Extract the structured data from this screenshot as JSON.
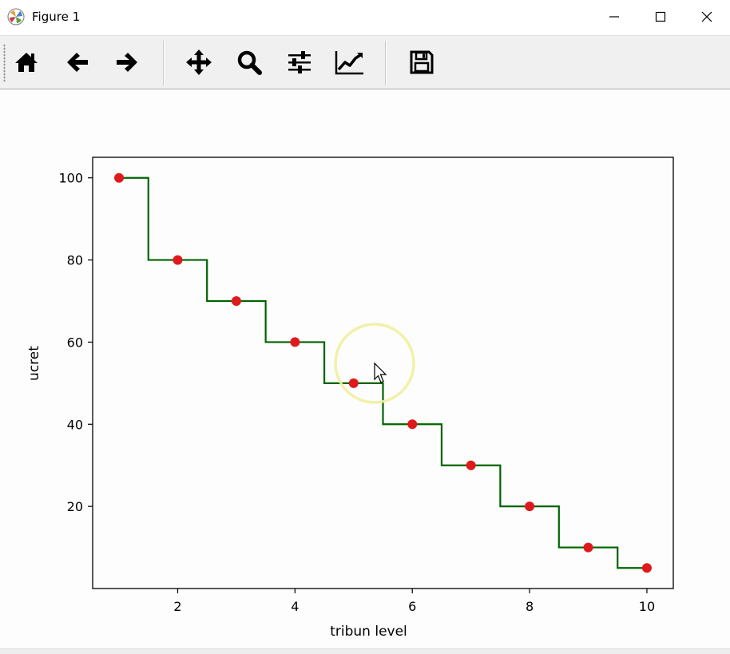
{
  "window": {
    "title": "Figure 1",
    "controls": [
      "minimize",
      "maximize",
      "close"
    ]
  },
  "toolbar": {
    "buttons": [
      {
        "name": "home",
        "icon": "home-icon",
        "tooltip": "Reset original view"
      },
      {
        "name": "back",
        "icon": "arrow-left-icon",
        "tooltip": "Back to previous view"
      },
      {
        "name": "forward",
        "icon": "arrow-right-icon",
        "tooltip": "Forward to next view"
      },
      {
        "name": "pan",
        "icon": "move-arrows-icon",
        "tooltip": "Pan axes"
      },
      {
        "name": "zoom",
        "icon": "magnifier-icon",
        "tooltip": "Zoom to rectangle"
      },
      {
        "name": "subplots",
        "icon": "sliders-icon",
        "tooltip": "Configure subplots"
      },
      {
        "name": "edit-axes",
        "icon": "line-chart-icon",
        "tooltip": "Edit axis, curve and image parameters"
      },
      {
        "name": "save",
        "icon": "floppy-disk-icon",
        "tooltip": "Save the figure"
      }
    ]
  },
  "colors": {
    "step_line": "#006400",
    "points": "#e0191c",
    "cursor_highlight": "#f0f0a0"
  },
  "chart_data": {
    "type": "line",
    "title": "",
    "xlabel": "tribun level",
    "ylabel": "ucret",
    "xlim": [
      0.55,
      10.45
    ],
    "ylim": [
      0,
      105
    ],
    "xticks": [
      2,
      4,
      6,
      8,
      10
    ],
    "yticks": [
      20,
      40,
      60,
      80,
      100
    ],
    "grid": false,
    "series": [
      {
        "style": "step-mid",
        "color": "#006400",
        "x": [
          1,
          2,
          3,
          4,
          5,
          6,
          7,
          8,
          9,
          10
        ],
        "y": [
          100,
          80,
          70,
          60,
          50,
          40,
          30,
          20,
          10,
          5
        ]
      },
      {
        "style": "scatter",
        "color": "#e0191c",
        "x": [
          1,
          2,
          3,
          4,
          5,
          6,
          7,
          8,
          9,
          10
        ],
        "y": [
          100,
          80,
          70,
          60,
          50,
          40,
          30,
          20,
          10,
          5
        ]
      }
    ]
  }
}
